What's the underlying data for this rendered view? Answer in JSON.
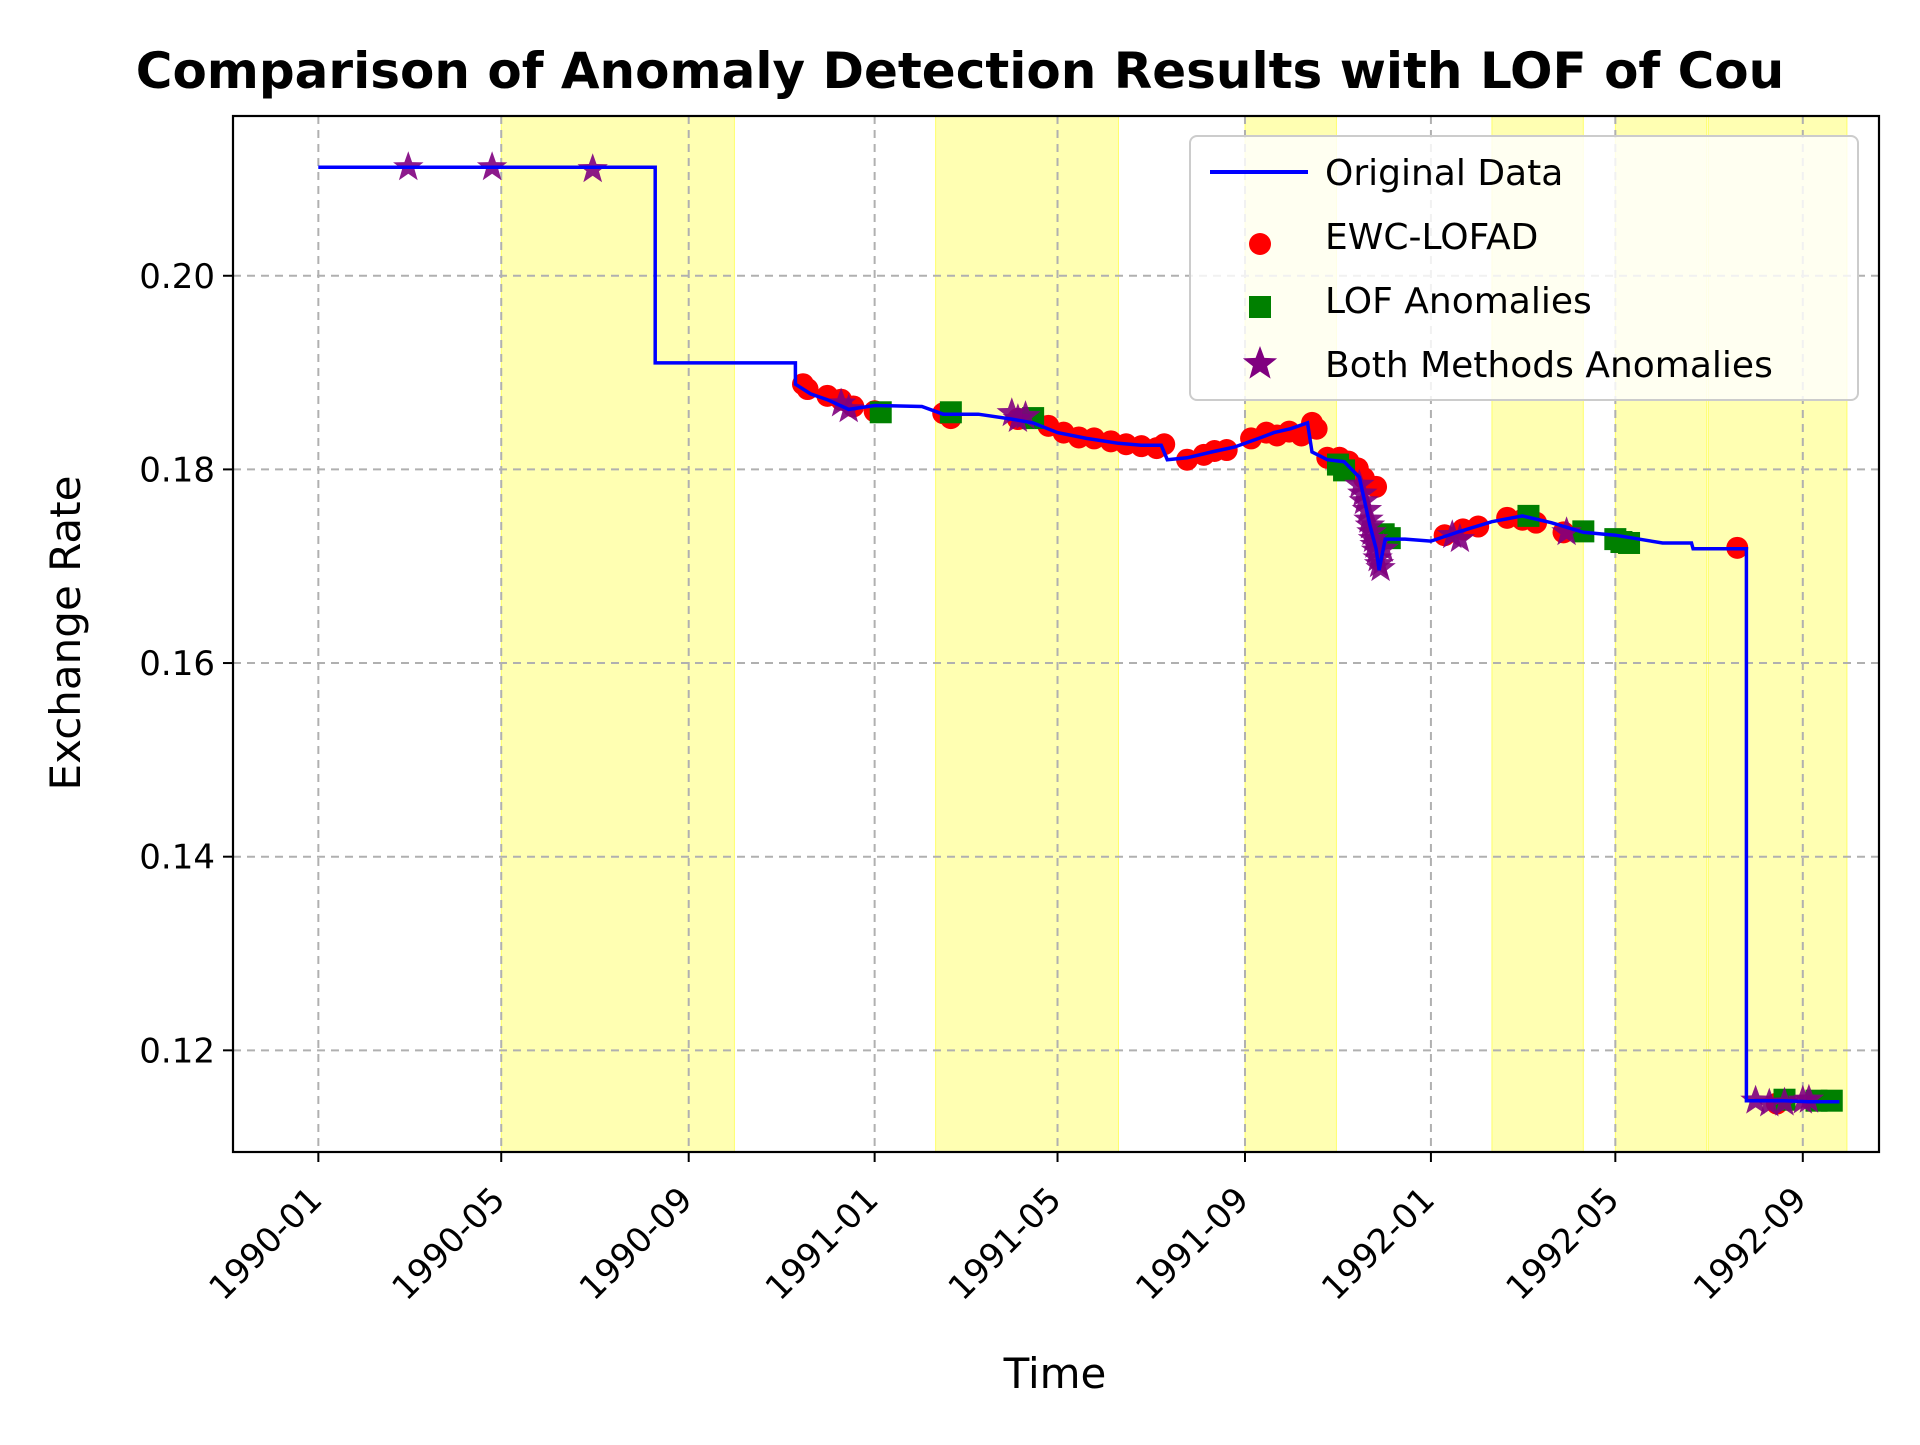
{
  "chart_data": {
    "type": "line",
    "title": "Comparison of Anomaly Detection Results with LOF of Cou",
    "xlabel": "Time",
    "ylabel": "Exchange Rate",
    "x_axis_type": "date",
    "xlim": [
      "1989-11-06",
      "1992-10-21"
    ],
    "ylim": [
      0.1095,
      0.2165
    ],
    "x_ticks": [
      "1990-01",
      "1990-05",
      "1990-09",
      "1991-01",
      "1991-05",
      "1991-09",
      "1992-01",
      "1992-05",
      "1992-09"
    ],
    "y_ticks": [
      "0.12",
      "0.14",
      "0.16",
      "0.18",
      "0.20"
    ],
    "grid": true,
    "legend_position": "top-right",
    "highlighted_regions": {
      "color": "#ffff00",
      "opacity": 0.3,
      "ranges": [
        [
          "1990-05-01",
          "1990-10-01"
        ],
        [
          "1991-02-10",
          "1991-06-10"
        ],
        [
          "1991-09-01",
          "1991-10-31"
        ],
        [
          "1992-02-10",
          "1992-04-10"
        ],
        [
          "1992-05-01",
          "1992-06-30"
        ],
        [
          "1992-07-01",
          "1992-09-30"
        ]
      ]
    },
    "series": [
      {
        "name": "Original Data",
        "kind": "step-line",
        "color": "#0000ff",
        "x": [
          "1990-01-01",
          "1990-08-10",
          "1990-08-10",
          "1990-11-10",
          "1990-11-10",
          "1990-11-20",
          "1990-12-01",
          "1990-12-15",
          "1991-01-01",
          "1991-02-01",
          "1991-02-15",
          "1991-03-10",
          "1991-04-01",
          "1991-04-15",
          "1991-05-01",
          "1991-05-20",
          "1991-06-10",
          "1991-06-25",
          "1991-07-08",
          "1991-07-12",
          "1991-07-25",
          "1991-08-10",
          "1991-08-25",
          "1991-09-10",
          "1991-09-20",
          "1991-10-01",
          "1991-10-12",
          "1991-10-15",
          "1991-10-25",
          "1991-11-05",
          "1991-11-15",
          "1991-11-22",
          "1991-11-26",
          "1991-11-28",
          "1991-12-02",
          "1991-12-15",
          "1992-01-01",
          "1992-01-20",
          "1992-02-10",
          "1992-03-01",
          "1992-03-20",
          "1992-04-10",
          "1992-05-01",
          "1992-06-01",
          "1992-06-20",
          "1992-06-21",
          "1992-07-26",
          "1992-07-26",
          "1992-08-20",
          "1992-09-05",
          "1992-09-25"
        ],
        "y": [
          0.2112,
          0.2112,
          0.191,
          0.191,
          0.1888,
          0.1878,
          0.1872,
          0.1862,
          0.1866,
          0.1865,
          0.1857,
          0.1857,
          0.1852,
          0.1848,
          0.1838,
          0.1832,
          0.1827,
          0.1825,
          0.1825,
          0.181,
          0.1812,
          0.1818,
          0.1823,
          0.1832,
          0.1838,
          0.1842,
          0.1848,
          0.1818,
          0.181,
          0.1808,
          0.1792,
          0.1742,
          0.1718,
          0.1696,
          0.1728,
          0.1728,
          0.1726,
          0.1736,
          0.1746,
          0.1752,
          0.1745,
          0.1735,
          0.1732,
          0.1724,
          0.1724,
          0.1718,
          0.1718,
          0.1148,
          0.1148,
          0.1147,
          0.1147
        ]
      },
      {
        "name": "EWC-LOFAD",
        "kind": "scatter",
        "marker": "circle",
        "color": "#ff0000",
        "x": [
          "1990-11-15",
          "1990-11-18",
          "1990-12-01",
          "1990-12-10",
          "1990-12-18",
          "1991-01-01",
          "1991-02-15",
          "1991-02-20",
          "1991-04-05",
          "1991-04-25",
          "1991-05-05",
          "1991-05-15",
          "1991-05-25",
          "1991-06-05",
          "1991-06-15",
          "1991-06-25",
          "1991-07-05",
          "1991-07-10",
          "1991-07-25",
          "1991-08-05",
          "1991-08-12",
          "1991-08-20",
          "1991-09-05",
          "1991-09-15",
          "1991-09-22",
          "1991-09-30",
          "1991-10-08",
          "1991-10-15",
          "1991-10-18",
          "1991-10-25",
          "1991-11-02",
          "1991-11-08",
          "1991-11-14",
          "1991-11-18",
          "1991-11-26",
          "1992-01-10",
          "1992-01-22",
          "1992-02-01",
          "1992-02-20",
          "1992-03-01",
          "1992-03-10",
          "1992-03-28",
          "1992-07-20",
          "1992-08-15"
        ],
        "y": [
          0.1888,
          0.1883,
          0.1876,
          0.1872,
          0.1865,
          0.186,
          0.1858,
          0.1853,
          0.1852,
          0.1845,
          0.1838,
          0.1833,
          0.1832,
          0.1829,
          0.1826,
          0.1824,
          0.1822,
          0.1826,
          0.181,
          0.1815,
          0.1819,
          0.182,
          0.1832,
          0.1838,
          0.1835,
          0.1839,
          0.1835,
          0.1848,
          0.1842,
          0.1812,
          0.1812,
          0.1808,
          0.1801,
          0.1791,
          0.1782,
          0.1732,
          0.1738,
          0.1741,
          0.175,
          0.1748,
          0.1745,
          0.1735,
          0.1719,
          0.1145
        ]
      },
      {
        "name": "LOF Anomalies",
        "kind": "scatter",
        "marker": "square",
        "color": "#008000",
        "x": [
          "1991-01-05",
          "1991-02-20",
          "1991-04-15",
          "1991-11-01",
          "1991-11-05",
          "1991-12-01",
          "1991-12-05",
          "1992-03-05",
          "1992-04-10",
          "1992-05-01",
          "1992-05-05",
          "1992-05-10",
          "1992-08-20",
          "1992-09-10",
          "1992-09-20"
        ],
        "y": [
          0.1859,
          0.1859,
          0.1853,
          0.1805,
          0.1799,
          0.1733,
          0.1729,
          0.1752,
          0.1736,
          0.1728,
          0.1725,
          0.1724,
          0.1149,
          0.1148,
          0.1148
        ]
      },
      {
        "name": "Both Methods Anomalies",
        "kind": "scatter",
        "marker": "star",
        "color": "#800080",
        "x": [
          "1990-03-01",
          "1990-04-25",
          "1990-06-30",
          "1990-12-10",
          "1990-12-15",
          "1991-04-01",
          "1991-04-05",
          "1991-04-10",
          "1991-11-15",
          "1991-11-17",
          "1991-11-18",
          "1991-11-20",
          "1991-11-21",
          "1991-11-22",
          "1991-11-23",
          "1991-11-24",
          "1991-11-25",
          "1991-11-26",
          "1991-11-27",
          "1991-11-28",
          "1991-11-29",
          "1991-12-01",
          "1992-01-15",
          "1992-01-20",
          "1992-03-30",
          "1992-08-01",
          "1992-08-10",
          "1992-08-20",
          "1992-09-01",
          "1992-09-05"
        ],
        "y": [
          0.2112,
          0.2112,
          0.211,
          0.1868,
          0.1862,
          0.1858,
          0.1852,
          0.1855,
          0.1784,
          0.1775,
          0.1767,
          0.1758,
          0.1748,
          0.1742,
          0.1735,
          0.1728,
          0.1722,
          0.1716,
          0.1708,
          0.1702,
          0.1698,
          0.1718,
          0.1732,
          0.1728,
          0.1735,
          0.1148,
          0.1145,
          0.1146,
          0.1148,
          0.1149
        ]
      }
    ]
  }
}
